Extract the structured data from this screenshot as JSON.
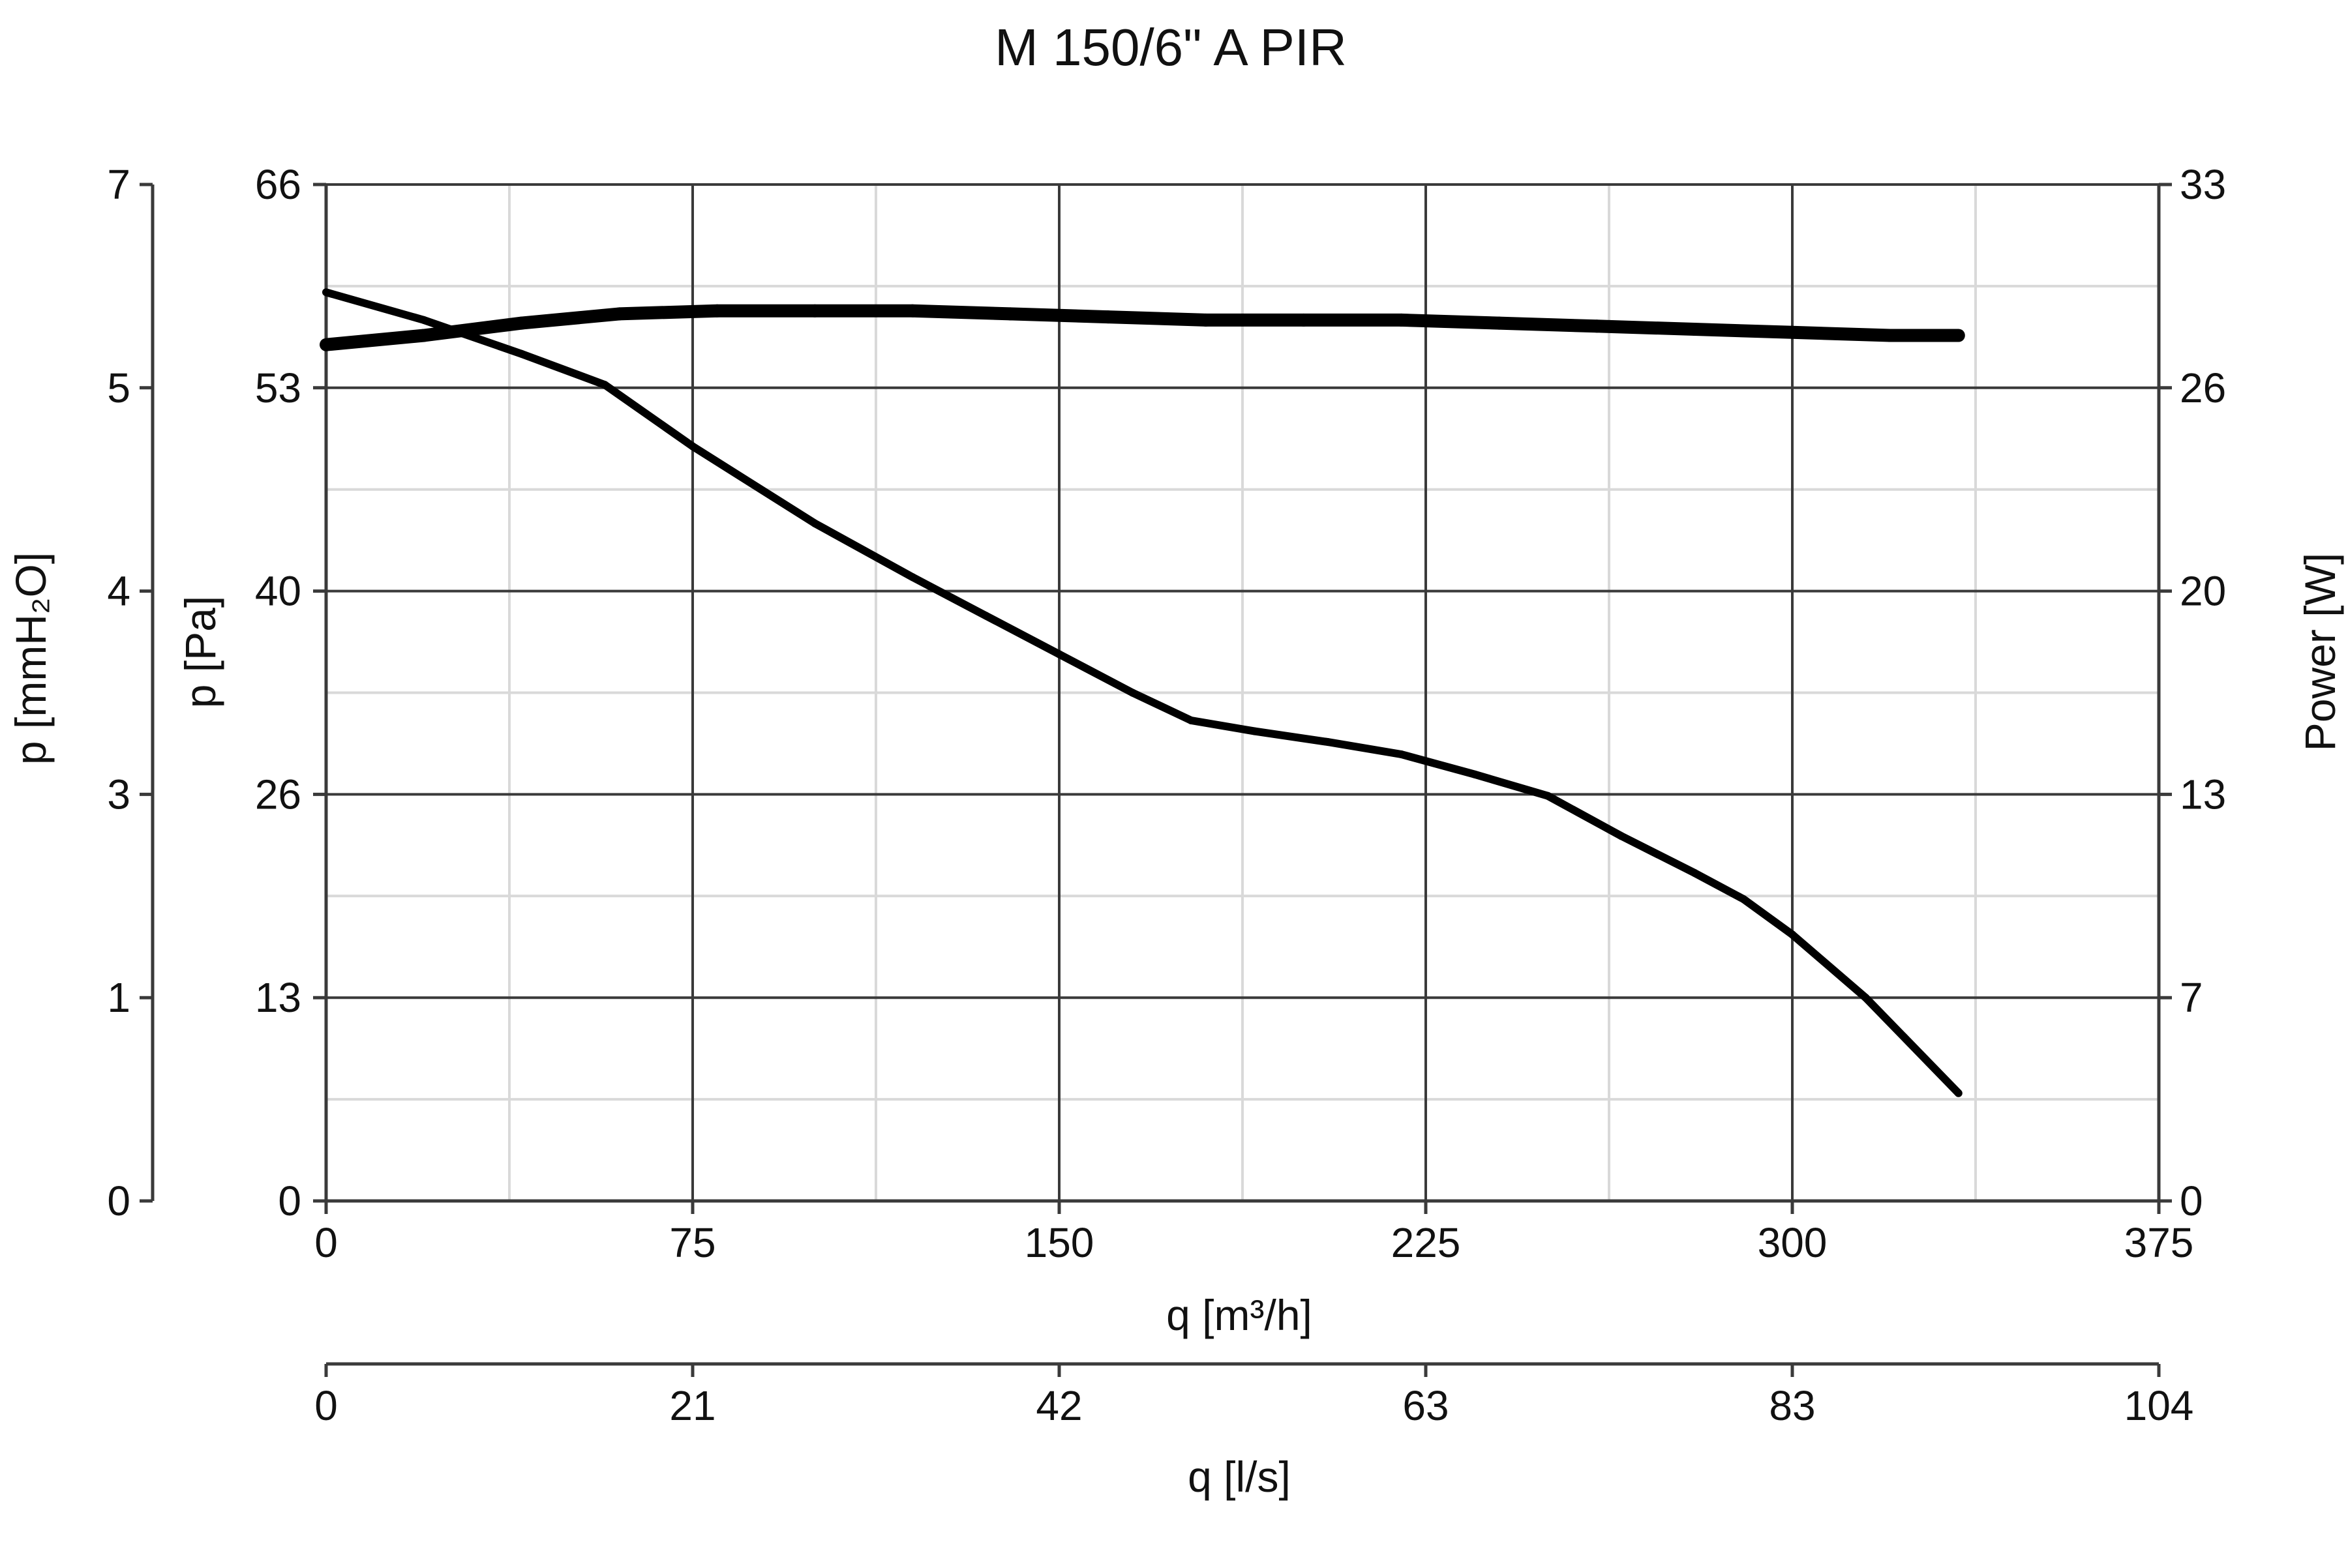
{
  "chart_data": {
    "type": "line",
    "title": "M 150/6\" A PIR",
    "x_axis": {
      "label": "q [m³/h]",
      "min": 0,
      "max": 375,
      "ticks": [
        0,
        75,
        150,
        225,
        300,
        375
      ],
      "tick_labels": [
        "0",
        "75",
        "150",
        "225",
        "300",
        "375"
      ],
      "minor_step": 37.5
    },
    "x_axis_secondary": {
      "label": "q [l/s]",
      "tick_labels": [
        "0",
        "21",
        "42",
        "63",
        "83",
        "104"
      ]
    },
    "y_axis": {
      "label": "p [Pa]",
      "min": 0,
      "max": 66,
      "tick_labels": [
        "0",
        "13",
        "26",
        "40",
        "53",
        "66"
      ]
    },
    "y_axis_secondary_left": {
      "label": "p [mmH₂O]",
      "tick_labels": [
        "0",
        "1",
        "3",
        "4",
        "5",
        "7"
      ]
    },
    "y_axis_right": {
      "label": "Power [W]",
      "min": 0,
      "max": 33,
      "tick_labels": [
        "0",
        "7",
        "13",
        "20",
        "26",
        "33"
      ]
    },
    "grid": true,
    "legend": "none",
    "series": [
      {
        "axis": "left",
        "x": [
          0,
          20,
          40,
          57,
          75,
          100,
          120,
          135,
          150,
          165,
          177,
          190,
          205,
          220,
          235,
          250,
          265,
          280,
          290,
          300,
          315,
          334
        ],
        "y": [
          59,
          57.2,
          55,
          53,
          49,
          44,
          40.5,
          38,
          35.5,
          33,
          31.2,
          30.5,
          29.8,
          29,
          27.7,
          26.3,
          23.7,
          21.3,
          19.6,
          17.3,
          13.2,
          7
        ]
      },
      {
        "axis": "right",
        "x": [
          0,
          20,
          40,
          60,
          80,
          100,
          120,
          140,
          160,
          180,
          200,
          220,
          240,
          260,
          280,
          300,
          320,
          334
        ],
        "y": [
          27.8,
          28.1,
          28.5,
          28.8,
          28.9,
          28.9,
          28.9,
          28.8,
          28.7,
          28.6,
          28.6,
          28.6,
          28.5,
          28.4,
          28.3,
          28.2,
          28.1,
          28.1
        ],
        "stroke_weight": "heavy"
      }
    ]
  }
}
